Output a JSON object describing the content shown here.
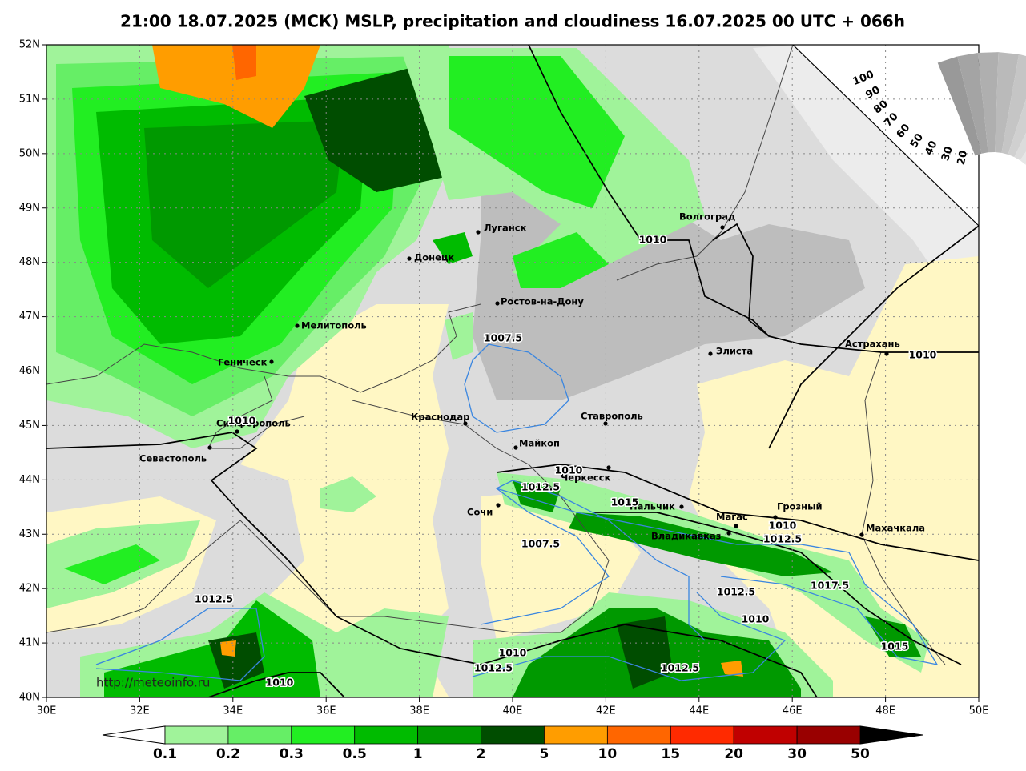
{
  "title": "21:00 18.07.2025 (МСК) MSLP, precipitation and cloudiness 16.07.2025 00 UTC + 066h",
  "lat_labels": [
    "52N",
    "51N",
    "50N",
    "49N",
    "48N",
    "47N",
    "46N",
    "45N",
    "44N",
    "43N",
    "42N",
    "41N",
    "40N"
  ],
  "lon_labels": [
    "30E",
    "32E",
    "34E",
    "36E",
    "38E",
    "40E",
    "42E",
    "44E",
    "46E",
    "48E",
    "50E"
  ],
  "cities": [
    "Волгоград",
    "Луганск",
    "Донецк",
    "Ростов-на-Дону",
    "Мелитополь",
    "Геническ",
    "Элиста",
    "Астрахань",
    "Симферополь",
    "Краснодар",
    "Ставрополь",
    "Севастополь",
    "Майкоп",
    "Черкесск",
    "Сочи",
    "Нальчик",
    "Магас",
    "Грозный",
    "Владикавказ",
    "Махачкала"
  ],
  "isobar_labels": [
    "1010",
    "1007.5",
    "1010",
    "1010",
    "1010",
    "1012.5",
    "1015",
    "1010",
    "1012.5",
    "1007.5",
    "1017.5",
    "1012.5",
    "1012.5",
    "1010",
    "1015",
    "1010",
    "1012.5",
    "1012.5",
    "1010"
  ],
  "colorbar": {
    "labels": [
      "0.1",
      "0.2",
      "0.3",
      "0.5",
      "1",
      "2",
      "5",
      "10",
      "15",
      "20",
      "30",
      "50"
    ],
    "colors": [
      "#a0f39a",
      "#66ee66",
      "#22ee22",
      "#00bb00",
      "#009900",
      "#004d00",
      "#ff9d00",
      "#ff6600",
      "#ff2a00",
      "#c00000",
      "#990000"
    ]
  },
  "cloud_labels": [
    "100",
    "90",
    "80",
    "70",
    "60",
    "50",
    "40",
    "30",
    "20"
  ],
  "url": "http://meteoinfo.ru"
}
